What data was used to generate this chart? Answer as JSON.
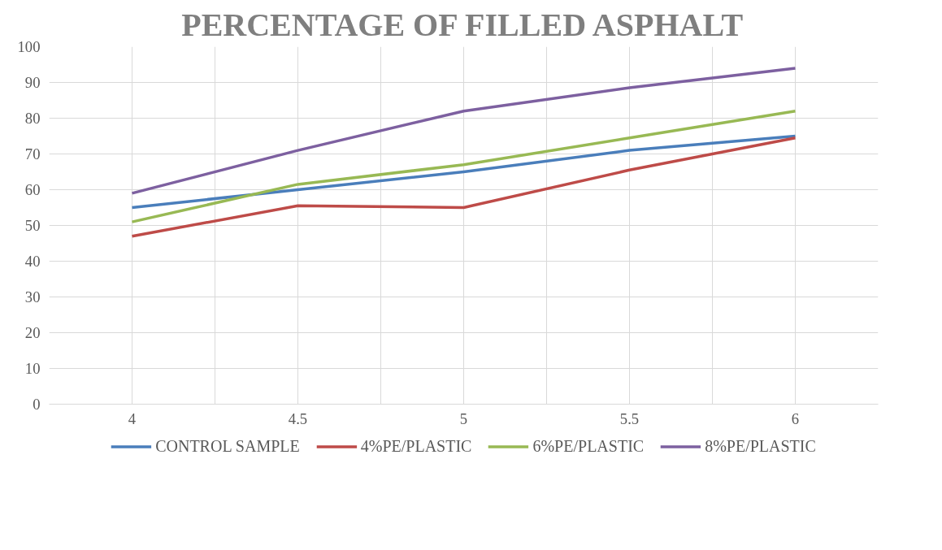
{
  "chart_data": {
    "type": "line",
    "title": "PERCENTAGE OF FILLED ASPHALT",
    "categories": [
      "4",
      "4.5",
      "5",
      "5.5",
      "6"
    ],
    "series": [
      {
        "name": "CONTROL SAMPLE",
        "color": "#4a7ebb",
        "values": [
          55,
          60,
          65,
          71,
          75
        ]
      },
      {
        "name": "4%PE/PLASTIC",
        "color": "#be4b48",
        "values": [
          47,
          55.5,
          55,
          65.5,
          74.5
        ]
      },
      {
        "name": "6%PE/PLASTIC",
        "color": "#98b954",
        "values": [
          51,
          61.5,
          67,
          74.5,
          82
        ]
      },
      {
        "name": "8%PE/PLASTIC",
        "color": "#7d60a0",
        "values": [
          59,
          71,
          82,
          88.5,
          94
        ]
      }
    ],
    "ylim": [
      0,
      100
    ],
    "yticks": [
      0,
      10,
      20,
      30,
      40,
      50,
      60,
      70,
      80,
      90,
      100
    ],
    "grid": true,
    "legend": "bottom",
    "marker": "none",
    "line_style": "solid"
  }
}
